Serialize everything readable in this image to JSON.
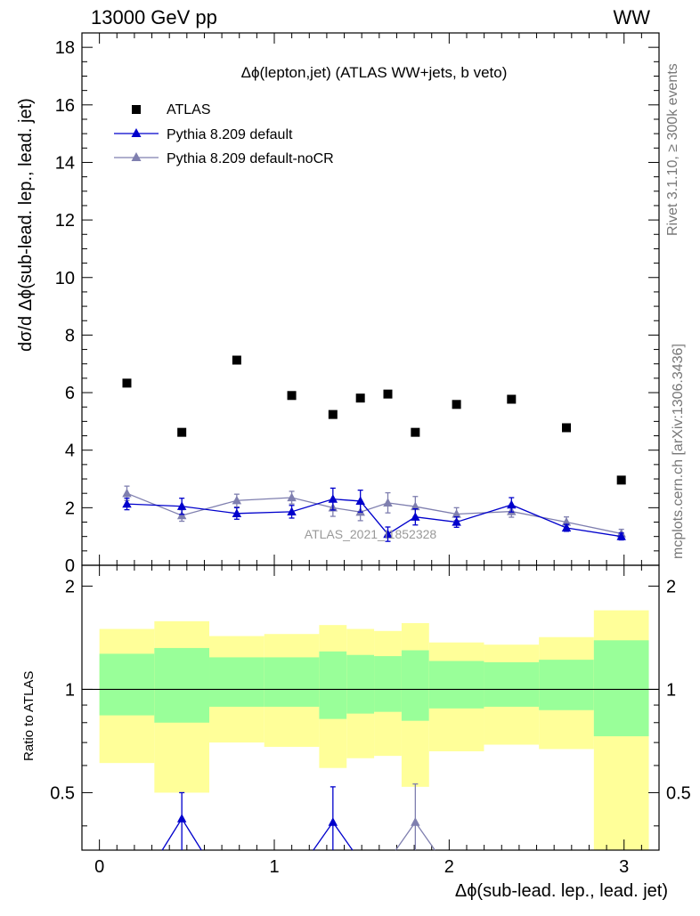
{
  "header": {
    "left": "13000 GeV pp",
    "right": "WW"
  },
  "side": {
    "top": "Rivet 3.1.10, ≥ 300k events",
    "bottom": "mcplots.cern.ch [arXiv:1306.3436]"
  },
  "chart_data": {
    "type": "scatter",
    "title": "Δϕ(lepton,jet) (ATLAS WW+jets, b veto)",
    "watermark": "ATLAS_2021_I1852328",
    "xlabel": "Δϕ(sub-lead. lep., lead. jet)",
    "ylabel": "dσ/d Δϕ(sub-lead. lep., lead. jet)",
    "ratio_ylabel": "Ratio to ATLAS",
    "xlim": [
      -0.1,
      3.2
    ],
    "ylim": [
      0,
      18.5
    ],
    "ratio_ylim": [
      0.34,
      2.3
    ],
    "x_ticks": [
      "0",
      "1",
      "2",
      "3"
    ],
    "y_ticks": [
      "0",
      "2",
      "4",
      "6",
      "8",
      "10",
      "12",
      "14",
      "16",
      "18"
    ],
    "ratio_ticks": [
      "0.5",
      "1",
      "2"
    ],
    "grid": false,
    "legend_position": "top-left",
    "bins": {
      "edges": [
        0,
        0.3142,
        0.6283,
        0.9425,
        1.2566,
        1.4137,
        1.5708,
        1.7279,
        1.885,
        2.1991,
        2.5133,
        2.8274,
        3.1416
      ],
      "centers": [
        0.1571,
        0.4712,
        0.7854,
        1.0996,
        1.3352,
        1.4923,
        1.6493,
        1.8064,
        2.042,
        2.3562,
        2.6704,
        2.9845
      ]
    },
    "series": [
      {
        "name": "ATLAS",
        "color": "#000000",
        "marker": "square",
        "values": [
          6.33,
          4.62,
          7.13,
          5.9,
          5.24,
          5.81,
          5.95,
          4.62,
          5.59,
          5.77,
          4.78,
          2.96
        ]
      },
      {
        "name": "Pythia 8.209 default",
        "color": "#0000cc",
        "marker": "triangle",
        "values": [
          2.13,
          2.05,
          1.8,
          1.86,
          2.3,
          2.23,
          1.08,
          1.68,
          1.5,
          2.1,
          1.3,
          1.0
        ],
        "errors": [
          0.2,
          0.28,
          0.2,
          0.22,
          0.38,
          0.38,
          0.25,
          0.28,
          0.18,
          0.25,
          0.12,
          0.12
        ]
      },
      {
        "name": "Pythia 8.209 default-noCR",
        "color": "#7f7faf",
        "marker": "triangle",
        "values": [
          2.5,
          1.73,
          2.25,
          2.35,
          2.0,
          1.85,
          2.17,
          2.04,
          1.78,
          1.87,
          1.5,
          1.1
        ],
        "errors": [
          0.25,
          0.2,
          0.22,
          0.22,
          0.3,
          0.3,
          0.35,
          0.35,
          0.22,
          0.2,
          0.18,
          0.15
        ]
      }
    ],
    "ratio_bands": {
      "inner_color": "#99ff99",
      "outer_color": "#ffff99",
      "inner_low": [
        0.84,
        0.8,
        0.89,
        0.89,
        0.82,
        0.85,
        0.86,
        0.81,
        0.88,
        0.89,
        0.87,
        0.73
      ],
      "inner_high": [
        1.27,
        1.32,
        1.24,
        1.24,
        1.29,
        1.26,
        1.25,
        1.3,
        1.21,
        1.2,
        1.22,
        1.39
      ],
      "outer_low": [
        0.61,
        0.5,
        0.7,
        0.68,
        0.59,
        0.63,
        0.64,
        0.52,
        0.66,
        0.69,
        0.67,
        0.34
      ],
      "outer_high": [
        1.5,
        1.58,
        1.43,
        1.45,
        1.54,
        1.5,
        1.48,
        1.56,
        1.37,
        1.35,
        1.42,
        1.7
      ]
    },
    "ratio_points": [
      {
        "series": "Pythia 8.209 default",
        "x": 0.4712,
        "value": 0.42,
        "error_high": 0.5
      },
      {
        "series": "Pythia 8.209 default",
        "x": 1.3352,
        "value": 0.41,
        "error_high": 0.52
      },
      {
        "series": "Pythia 8.209 default-noCR",
        "x": 1.8064,
        "value": 0.41,
        "error_high": 0.53
      }
    ]
  }
}
